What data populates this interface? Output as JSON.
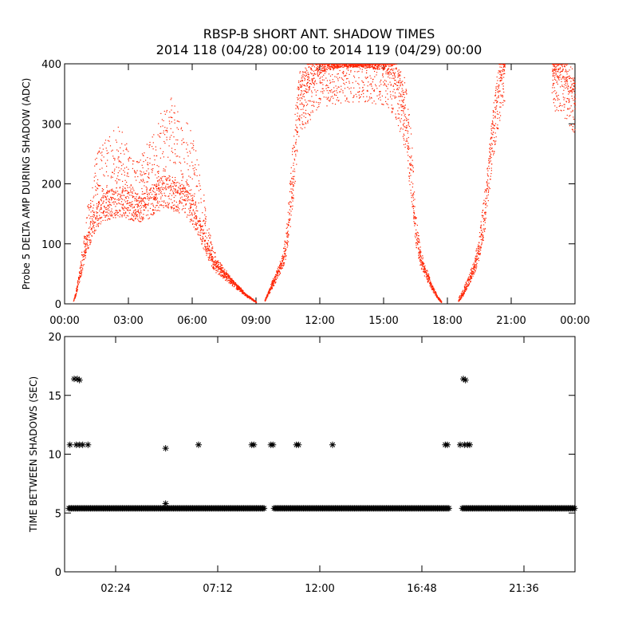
{
  "title_line1": "RBSP-B SHORT ANT. SHADOW TIMES",
  "title_line2": "2014 118 (04/28) 00:00 to 2014 119 (04/29) 00:00",
  "chart_data": [
    {
      "type": "scatter",
      "ylabel": "Probe 5 DELTA AMP DURING SHADOW (ADC)",
      "xlabel": "",
      "xlim_hours": [
        0,
        24
      ],
      "ylim": [
        0,
        400
      ],
      "x_tick_labels": [
        "00:00",
        "03:00",
        "06:00",
        "09:00",
        "12:00",
        "15:00",
        "18:00",
        "21:00",
        "00:00"
      ],
      "x_tick_hours": [
        0,
        3,
        6,
        9,
        12,
        15,
        18,
        21,
        24
      ],
      "y_ticks": [
        0,
        100,
        200,
        300,
        400
      ],
      "marker_color": "#ff2200",
      "segments": [
        {
          "hours": [
            0.4,
            0.5,
            0.6,
            0.7,
            0.8,
            0.9,
            1.0,
            1.2,
            1.4,
            1.6,
            1.8,
            2.0,
            2.2,
            2.5,
            2.8,
            3.0,
            3.3,
            3.6,
            3.9,
            4.2,
            4.5,
            4.8,
            5.0,
            5.2,
            5.5,
            5.8,
            6.0,
            6.2,
            6.5,
            6.8,
            7.0,
            7.3,
            7.6,
            7.9,
            8.2,
            8.5,
            8.8,
            9.0
          ],
          "amp": [
            5,
            15,
            30,
            45,
            60,
            80,
            95,
            120,
            140,
            150,
            160,
            165,
            168,
            170,
            172,
            165,
            162,
            160,
            165,
            175,
            185,
            190,
            185,
            180,
            175,
            165,
            155,
            140,
            110,
            80,
            65,
            55,
            45,
            35,
            25,
            15,
            8,
            3
          ],
          "upper": [
            5,
            20,
            40,
            60,
            90,
            120,
            150,
            200,
            240,
            260,
            270,
            280,
            290,
            300,
            280,
            260,
            240,
            250,
            270,
            300,
            320,
            340,
            345,
            330,
            310,
            300,
            280,
            250,
            190,
            120,
            90,
            70,
            55,
            40,
            30,
            18,
            10,
            4
          ]
        },
        {
          "hours": [
            9.4,
            9.6,
            9.8,
            10.0,
            10.2,
            10.4,
            10.6,
            10.8,
            11.0,
            11.5,
            12.0,
            13.0,
            14.0,
            15.0,
            15.5,
            16.0,
            16.3,
            16.5,
            16.7,
            16.9,
            17.1,
            17.3,
            17.5,
            17.7
          ],
          "amp": [
            5,
            20,
            35,
            50,
            65,
            90,
            150,
            230,
            330,
            360,
            385,
            395,
            395,
            390,
            370,
            300,
            200,
            110,
            75,
            55,
            40,
            25,
            12,
            3
          ],
          "upper": [
            8,
            25,
            45,
            60,
            80,
            120,
            220,
            320,
            390,
            400,
            400,
            400,
            400,
            400,
            400,
            380,
            280,
            150,
            100,
            70,
            50,
            30,
            15,
            5
          ]
        },
        {
          "hours": [
            18.5,
            18.7,
            18.9,
            19.1,
            19.3,
            19.5,
            19.7,
            19.9,
            20.1,
            20.3,
            20.5,
            20.7
          ],
          "amp": [
            5,
            15,
            30,
            45,
            65,
            90,
            130,
            200,
            270,
            330,
            370,
            395
          ],
          "upper": [
            10,
            25,
            40,
            60,
            85,
            120,
            180,
            250,
            320,
            370,
            395,
            400
          ]
        },
        {
          "hours": [
            22.9,
            23.2,
            23.5,
            23.8,
            24.0
          ],
          "amp": [
            380,
            375,
            360,
            345,
            330
          ],
          "upper": [
            400,
            400,
            395,
            380,
            370
          ]
        }
      ]
    },
    {
      "type": "scatter",
      "ylabel": "TIME BETWEEN SHADOWS (SEC)",
      "xlabel": "",
      "xlim_hours": [
        0,
        24
      ],
      "ylim": [
        0,
        20
      ],
      "x_tick_labels": [
        "02:24",
        "07:12",
        "12:00",
        "16:48",
        "21:36"
      ],
      "x_tick_hours": [
        2.4,
        7.2,
        12.0,
        16.8,
        21.6
      ],
      "y_ticks": [
        0,
        5,
        10,
        15,
        20
      ],
      "marker": "*",
      "marker_color": "#000000",
      "baseline_value": 5.4,
      "baseline_ranges_hours": [
        [
          0.2,
          9.4
        ],
        [
          9.85,
          18.1
        ],
        [
          18.7,
          24.0
        ]
      ],
      "points": [
        {
          "x": 0.25,
          "y": 10.8
        },
        {
          "x": 0.45,
          "y": 16.4
        },
        {
          "x": 0.55,
          "y": 10.8
        },
        {
          "x": 0.6,
          "y": 16.4
        },
        {
          "x": 0.7,
          "y": 16.3
        },
        {
          "x": 0.7,
          "y": 10.8
        },
        {
          "x": 0.85,
          "y": 10.8
        },
        {
          "x": 1.1,
          "y": 10.8
        },
        {
          "x": 4.75,
          "y": 10.5
        },
        {
          "x": 4.75,
          "y": 5.8
        },
        {
          "x": 6.3,
          "y": 10.8
        },
        {
          "x": 8.8,
          "y": 10.8
        },
        {
          "x": 8.9,
          "y": 10.8
        },
        {
          "x": 9.7,
          "y": 10.8
        },
        {
          "x": 9.8,
          "y": 10.8
        },
        {
          "x": 10.9,
          "y": 10.8
        },
        {
          "x": 11.0,
          "y": 10.8
        },
        {
          "x": 12.6,
          "y": 10.8
        },
        {
          "x": 17.9,
          "y": 10.8
        },
        {
          "x": 18.0,
          "y": 10.8
        },
        {
          "x": 18.6,
          "y": 10.8
        },
        {
          "x": 18.75,
          "y": 16.4
        },
        {
          "x": 18.8,
          "y": 10.8
        },
        {
          "x": 18.85,
          "y": 16.3
        },
        {
          "x": 18.95,
          "y": 10.8
        },
        {
          "x": 19.05,
          "y": 10.8
        }
      ]
    }
  ]
}
